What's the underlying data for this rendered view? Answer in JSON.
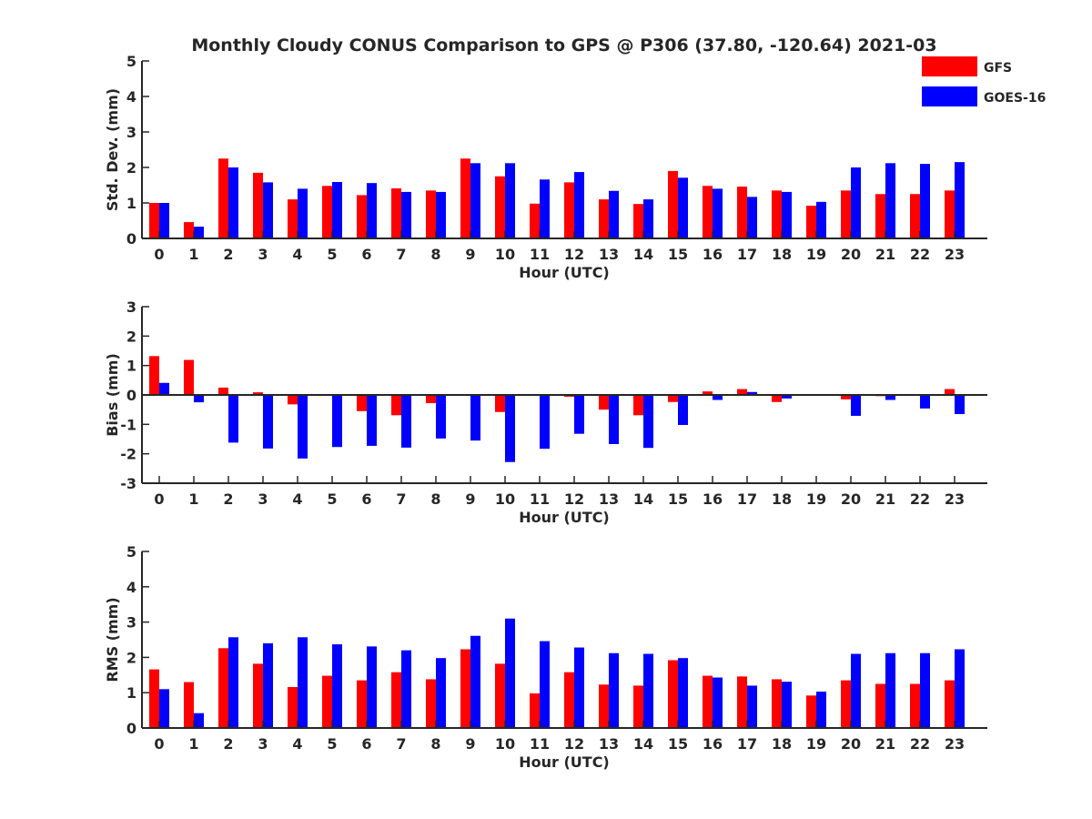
{
  "title": "Monthly Cloudy CONUS Comparison to GPS @ P306 (37.80, -120.64) 2021-03",
  "legend": [
    {
      "name": "GFS",
      "color": "#ff0000"
    },
    {
      "name": "GOES-16",
      "color": "#0000ff"
    }
  ],
  "chart_data": [
    {
      "type": "bar",
      "xlabel": "Hour (UTC)",
      "ylabel": "Std. Dev. (mm)",
      "ylim": [
        0,
        5
      ],
      "yticks": [
        "0",
        "1",
        "2",
        "3",
        "4",
        "5"
      ],
      "categories": [
        "0",
        "1",
        "2",
        "3",
        "4",
        "5",
        "6",
        "7",
        "8",
        "9",
        "10",
        "11",
        "12",
        "13",
        "14",
        "15",
        "16",
        "17",
        "18",
        "19",
        "20",
        "21",
        "22",
        "23"
      ],
      "series": [
        {
          "name": "GFS",
          "color": "#ff0000",
          "values": [
            1.0,
            0.46,
            2.25,
            1.85,
            1.1,
            1.48,
            1.22,
            1.41,
            1.35,
            2.25,
            1.75,
            0.98,
            1.58,
            1.1,
            0.97,
            1.9,
            1.48,
            1.46,
            1.35,
            0.92,
            1.35,
            1.25,
            1.25,
            1.35
          ]
        },
        {
          "name": "GOES-16",
          "color": "#0000ff",
          "values": [
            1.0,
            0.33,
            2.0,
            1.58,
            1.4,
            1.59,
            1.56,
            1.31,
            1.31,
            2.12,
            2.12,
            1.66,
            1.87,
            1.34,
            1.1,
            1.71,
            1.4,
            1.17,
            1.31,
            1.03,
            2.0,
            2.12,
            2.1,
            2.15
          ]
        }
      ]
    },
    {
      "type": "bar",
      "xlabel": "Hour (UTC)",
      "ylabel": "Bias (mm)",
      "ylim": [
        -3,
        3
      ],
      "yticks": [
        "-3",
        "-2",
        "-1",
        "0",
        "1",
        "2",
        "3"
      ],
      "categories": [
        "0",
        "1",
        "2",
        "3",
        "4",
        "5",
        "6",
        "7",
        "8",
        "9",
        "10",
        "11",
        "12",
        "13",
        "14",
        "15",
        "16",
        "17",
        "18",
        "19",
        "20",
        "21",
        "22",
        "23"
      ],
      "series": [
        {
          "name": "GFS",
          "color": "#ff0000",
          "values": [
            1.32,
            1.19,
            0.25,
            0.09,
            -0.32,
            0.02,
            -0.55,
            -0.69,
            -0.28,
            0.0,
            -0.58,
            0.02,
            -0.06,
            -0.5,
            -0.69,
            -0.24,
            0.12,
            0.2,
            -0.24,
            0.02,
            -0.15,
            -0.04,
            0.0,
            0.2
          ]
        },
        {
          "name": "GOES-16",
          "color": "#0000ff",
          "values": [
            0.41,
            -0.25,
            -1.62,
            -1.82,
            -2.16,
            -1.77,
            -1.73,
            -1.79,
            -1.48,
            -1.55,
            -2.28,
            -1.83,
            -1.32,
            -1.67,
            -1.8,
            -1.02,
            -0.17,
            0.1,
            -0.12,
            0.0,
            -0.71,
            -0.17,
            -0.46,
            -0.65
          ]
        }
      ]
    },
    {
      "type": "bar",
      "xlabel": "Hour (UTC)",
      "ylabel": "RMS (mm)",
      "ylim": [
        0,
        5
      ],
      "yticks": [
        "0",
        "1",
        "2",
        "3",
        "4",
        "5"
      ],
      "categories": [
        "0",
        "1",
        "2",
        "3",
        "4",
        "5",
        "6",
        "7",
        "8",
        "9",
        "10",
        "11",
        "12",
        "13",
        "14",
        "15",
        "16",
        "17",
        "18",
        "19",
        "20",
        "21",
        "22",
        "23"
      ],
      "series": [
        {
          "name": "GFS",
          "color": "#ff0000",
          "values": [
            1.66,
            1.3,
            2.26,
            1.82,
            1.16,
            1.48,
            1.35,
            1.58,
            1.38,
            2.23,
            1.82,
            0.98,
            1.58,
            1.23,
            1.2,
            1.92,
            1.48,
            1.46,
            1.38,
            0.92,
            1.35,
            1.25,
            1.25,
            1.35
          ]
        },
        {
          "name": "GOES-16",
          "color": "#0000ff",
          "values": [
            1.1,
            0.42,
            2.57,
            2.4,
            2.57,
            2.37,
            2.31,
            2.2,
            1.98,
            2.61,
            3.1,
            2.46,
            2.28,
            2.12,
            2.1,
            1.98,
            1.43,
            1.2,
            1.31,
            1.03,
            2.1,
            2.12,
            2.12,
            2.23
          ]
        }
      ]
    }
  ]
}
